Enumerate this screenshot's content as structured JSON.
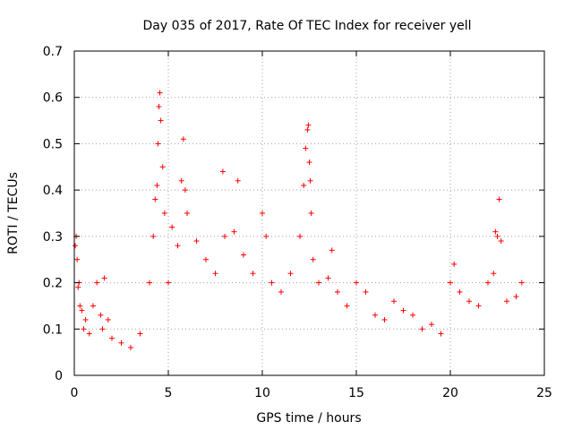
{
  "chart_data": {
    "type": "scatter",
    "title": "Day 035 of 2017, Rate Of TEC Index for receiver yell",
    "xlabel": "GPS time / hours",
    "ylabel": "ROTI / TECUs",
    "xlim": [
      0,
      25
    ],
    "ylim": [
      0,
      0.7
    ],
    "x_ticks": [
      0,
      5,
      10,
      15,
      20,
      25
    ],
    "x_tick_labels": [
      "0",
      "5",
      "10",
      "15",
      "20",
      "25"
    ],
    "y_ticks": [
      0,
      0.1,
      0.2,
      0.3,
      0.4,
      0.5,
      0.6,
      0.7
    ],
    "y_tick_labels": [
      "0",
      "0.1",
      "0.2",
      "0.3",
      "0.4",
      "0.5",
      "0.6",
      "0.7"
    ],
    "grid": true,
    "marker": "plus",
    "marker_color": "#ff0000",
    "series": [
      {
        "name": "ROTI",
        "x": [
          0.05,
          0.1,
          0.15,
          0.2,
          0.25,
          0.3,
          0.4,
          0.5,
          0.6,
          0.8,
          1.0,
          1.2,
          1.4,
          1.5,
          1.6,
          1.8,
          2.0,
          2.5,
          3.0,
          3.5,
          4.0,
          4.2,
          4.3,
          4.4,
          4.45,
          4.5,
          4.55,
          4.6,
          4.7,
          4.8,
          5.0,
          5.2,
          5.5,
          5.7,
          5.8,
          5.9,
          6.0,
          6.5,
          7.0,
          7.5,
          7.9,
          8.0,
          8.5,
          8.7,
          9.0,
          9.5,
          10.0,
          10.2,
          10.5,
          11.0,
          11.5,
          12.0,
          12.2,
          12.3,
          12.4,
          12.45,
          12.5,
          12.55,
          12.6,
          12.7,
          13.0,
          13.5,
          13.7,
          14.0,
          14.5,
          15.0,
          15.5,
          16.0,
          16.5,
          17.0,
          17.5,
          18.0,
          18.5,
          19.0,
          19.5,
          20.0,
          20.2,
          20.5,
          21.0,
          21.5,
          22.0,
          22.3,
          22.4,
          22.5,
          22.6,
          22.7,
          23.0,
          23.5,
          23.8
        ],
        "y": [
          0.28,
          0.3,
          0.25,
          0.19,
          0.2,
          0.15,
          0.14,
          0.1,
          0.12,
          0.09,
          0.15,
          0.2,
          0.13,
          0.1,
          0.21,
          0.12,
          0.08,
          0.07,
          0.06,
          0.09,
          0.2,
          0.3,
          0.38,
          0.41,
          0.5,
          0.58,
          0.61,
          0.55,
          0.45,
          0.35,
          0.2,
          0.32,
          0.28,
          0.42,
          0.51,
          0.4,
          0.35,
          0.29,
          0.25,
          0.22,
          0.44,
          0.3,
          0.31,
          0.42,
          0.26,
          0.22,
          0.35,
          0.3,
          0.2,
          0.18,
          0.22,
          0.3,
          0.41,
          0.49,
          0.53,
          0.54,
          0.46,
          0.42,
          0.35,
          0.25,
          0.2,
          0.21,
          0.27,
          0.18,
          0.15,
          0.2,
          0.18,
          0.13,
          0.12,
          0.16,
          0.14,
          0.13,
          0.1,
          0.11,
          0.09,
          0.2,
          0.24,
          0.18,
          0.16,
          0.15,
          0.2,
          0.22,
          0.31,
          0.3,
          0.38,
          0.29,
          0.16,
          0.17,
          0.2
        ]
      }
    ]
  }
}
